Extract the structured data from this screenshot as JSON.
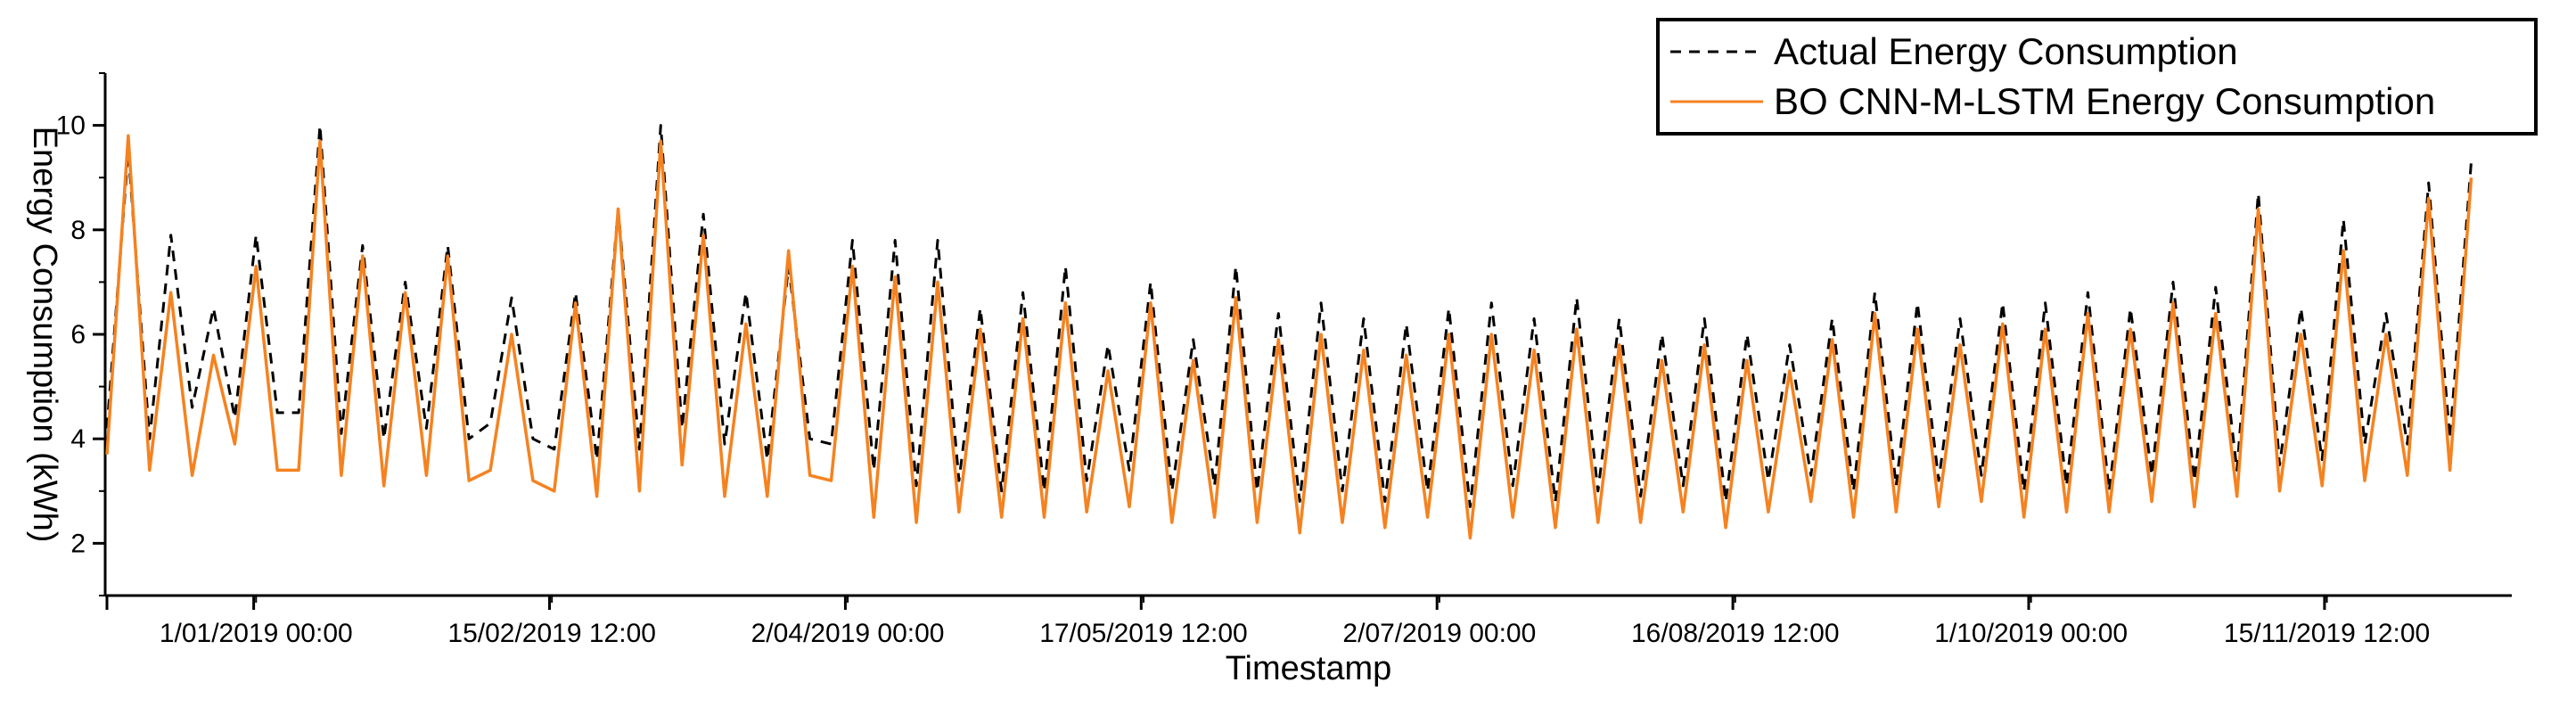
{
  "chart_data": {
    "type": "line",
    "xlabel": "Timestamp",
    "ylabel": "Energy Consumption (kWh)",
    "ylim": [
      1,
      11
    ],
    "yticks": [
      2,
      4,
      6,
      8,
      10
    ],
    "xlim": [
      0,
      1000
    ],
    "xticks": [
      {
        "x": 125,
        "label": "1/01/2019 00:00"
      },
      {
        "x": 250,
        "label": "15/02/2019 12:00"
      },
      {
        "x": 375,
        "label": "2/04/2019 00:00"
      },
      {
        "x": 500,
        "label": "17/05/2019 12:00"
      },
      {
        "x": 625,
        "label": "2/07/2019 00:00"
      },
      {
        "x": 750,
        "label": "16/08/2019 12:00"
      },
      {
        "x": 875,
        "label": "1/10/2019 00:00"
      },
      {
        "x": 1000,
        "label": "15/11/2019 12:00"
      }
    ],
    "legend_position": "top-right",
    "grid": false,
    "series": [
      {
        "name": "Actual Energy Consumption",
        "color": "#000000",
        "style": "dashed",
        "x": [
          0,
          9,
          18,
          27,
          36,
          45,
          54,
          63,
          72,
          81,
          90,
          99,
          108,
          117,
          126,
          135,
          144,
          153,
          162,
          171,
          180,
          189,
          198,
          207,
          216,
          225,
          234,
          243,
          252,
          261,
          270,
          279,
          288,
          297,
          306,
          315,
          324,
          333,
          342,
          351,
          360,
          369,
          378,
          387,
          396,
          405,
          414,
          423,
          432,
          441,
          450,
          459,
          468,
          477,
          486,
          495,
          504,
          513,
          522,
          531,
          540,
          549,
          558,
          567,
          576,
          585,
          594,
          603,
          612,
          621,
          630,
          639,
          648,
          657,
          666,
          675,
          684,
          693,
          702,
          711,
          720,
          729,
          738,
          747,
          756,
          765,
          774,
          783,
          792,
          801,
          810,
          819,
          828,
          837,
          846,
          855,
          864,
          873,
          882,
          891,
          900,
          909,
          918,
          927,
          936,
          945,
          954,
          963,
          972,
          981,
          990,
          999
        ],
        "values": [
          4.2,
          9.5,
          4.0,
          7.9,
          4.6,
          6.5,
          4.4,
          7.9,
          4.5,
          4.5,
          10.0,
          4.1,
          7.7,
          4.0,
          7.0,
          4.2,
          7.7,
          4.0,
          4.3,
          6.7,
          4.0,
          3.8,
          6.8,
          3.6,
          8.4,
          3.8,
          10.0,
          4.2,
          8.3,
          3.9,
          6.8,
          3.6,
          7.3,
          4.0,
          3.9,
          7.8,
          3.4,
          7.8,
          3.1,
          7.8,
          3.2,
          6.5,
          3.0,
          6.8,
          3.0,
          7.3,
          3.2,
          5.8,
          3.4,
          7.0,
          3.0,
          5.9,
          3.1,
          7.3,
          3.0,
          6.4,
          2.8,
          6.6,
          3.0,
          6.3,
          2.8,
          6.2,
          3.0,
          6.5,
          2.7,
          6.6,
          3.1,
          6.3,
          2.8,
          6.7,
          3.0,
          6.3,
          2.9,
          6.0,
          3.1,
          6.3,
          2.8,
          6.0,
          3.2,
          5.8,
          3.3,
          6.3,
          3.0,
          6.8,
          3.1,
          6.6,
          3.2,
          6.3,
          3.3,
          6.6,
          3.0,
          6.6,
          3.1,
          6.8,
          3.0,
          6.5,
          3.3,
          7.0,
          3.2,
          6.9,
          3.4,
          8.7,
          3.5,
          6.5,
          3.6,
          8.2,
          3.9,
          6.4,
          3.9,
          8.9,
          4.0,
          9.3
        ]
      },
      {
        "name": "BO CNN-M-LSTM Energy Consumption",
        "color": "#F58220",
        "style": "solid",
        "x": [
          0,
          9,
          18,
          27,
          36,
          45,
          54,
          63,
          72,
          81,
          90,
          99,
          108,
          117,
          126,
          135,
          144,
          153,
          162,
          171,
          180,
          189,
          198,
          207,
          216,
          225,
          234,
          243,
          252,
          261,
          270,
          279,
          288,
          297,
          306,
          315,
          324,
          333,
          342,
          351,
          360,
          369,
          378,
          387,
          396,
          405,
          414,
          423,
          432,
          441,
          450,
          459,
          468,
          477,
          486,
          495,
          504,
          513,
          522,
          531,
          540,
          549,
          558,
          567,
          576,
          585,
          594,
          603,
          612,
          621,
          630,
          639,
          648,
          657,
          666,
          675,
          684,
          693,
          702,
          711,
          720,
          729,
          738,
          747,
          756,
          765,
          774,
          783,
          792,
          801,
          810,
          819,
          828,
          837,
          846,
          855,
          864,
          873,
          882,
          891,
          900,
          909,
          918,
          927,
          936,
          945,
          954,
          963,
          972,
          981,
          990,
          999
        ],
        "values": [
          3.7,
          9.8,
          3.4,
          6.8,
          3.3,
          5.6,
          3.9,
          7.3,
          3.4,
          3.4,
          9.7,
          3.3,
          7.5,
          3.1,
          6.8,
          3.3,
          7.5,
          3.2,
          3.4,
          6.0,
          3.2,
          3.0,
          6.6,
          2.9,
          8.4,
          3.0,
          9.7,
          3.5,
          7.9,
          2.9,
          6.2,
          2.9,
          7.6,
          3.3,
          3.2,
          7.3,
          2.5,
          7.1,
          2.4,
          7.0,
          2.6,
          6.1,
          2.5,
          6.3,
          2.5,
          6.6,
          2.6,
          5.3,
          2.7,
          6.6,
          2.4,
          5.5,
          2.5,
          6.7,
          2.4,
          5.9,
          2.2,
          6.0,
          2.4,
          5.7,
          2.3,
          5.6,
          2.5,
          6.0,
          2.1,
          6.0,
          2.5,
          5.7,
          2.3,
          6.1,
          2.4,
          5.8,
          2.4,
          5.5,
          2.6,
          5.8,
          2.3,
          5.5,
          2.6,
          5.3,
          2.8,
          5.9,
          2.5,
          6.4,
          2.6,
          6.1,
          2.7,
          5.8,
          2.8,
          6.2,
          2.5,
          6.1,
          2.6,
          6.4,
          2.6,
          6.1,
          2.8,
          6.6,
          2.7,
          6.4,
          2.9,
          8.4,
          3.0,
          6.0,
          3.1,
          7.6,
          3.2,
          6.0,
          3.3,
          8.6,
          3.4,
          9.0
        ]
      }
    ]
  }
}
